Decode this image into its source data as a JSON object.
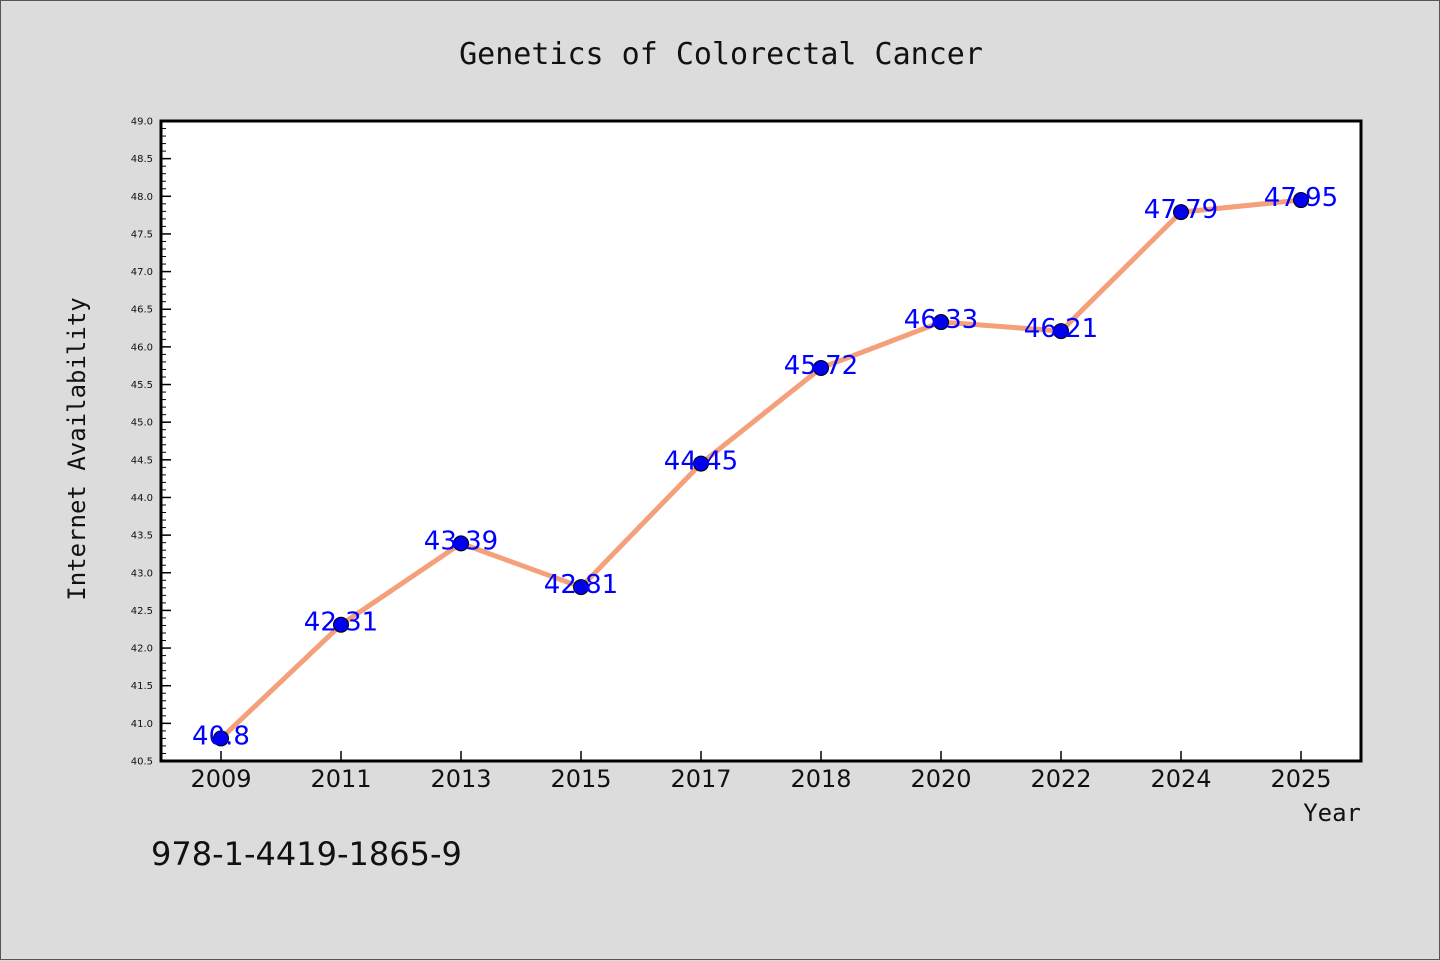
{
  "chart_data": {
    "type": "line",
    "title": "Genetics of Colorectal Cancer",
    "xlabel": "Year",
    "ylabel": "Internet Availability",
    "categories": [
      "2009",
      "2011",
      "2013",
      "2015",
      "2017",
      "2018",
      "2020",
      "2022",
      "2024",
      "2025"
    ],
    "series": [
      {
        "values": [
          40.8,
          42.31,
          43.39,
          42.81,
          44.45,
          45.72,
          46.33,
          46.21,
          47.79,
          47.95
        ],
        "data_labels": [
          "40.8",
          "42.31",
          "43.39",
          "42.81",
          "44.45",
          "45.72",
          "46.33",
          "46.21",
          "47.79",
          "47.95"
        ],
        "line_color": "#f4a07a",
        "marker_color": "#0000ee"
      }
    ],
    "ylim": [
      40.5,
      49.0
    ],
    "yticks": [
      "40.5",
      "41.0",
      "41.5",
      "42.0",
      "42.5",
      "43.0",
      "43.5",
      "44.0",
      "44.5",
      "45.0",
      "45.5",
      "46.0",
      "46.5",
      "47.0",
      "47.5",
      "48.0",
      "48.5",
      "49.0"
    ],
    "grid": false,
    "legend": "none"
  },
  "footnote": "978-1-4419-1865-9",
  "colors": {
    "background": "#dcdcdc",
    "plot_background": "#ffffff",
    "label_color": "#0000ff"
  }
}
